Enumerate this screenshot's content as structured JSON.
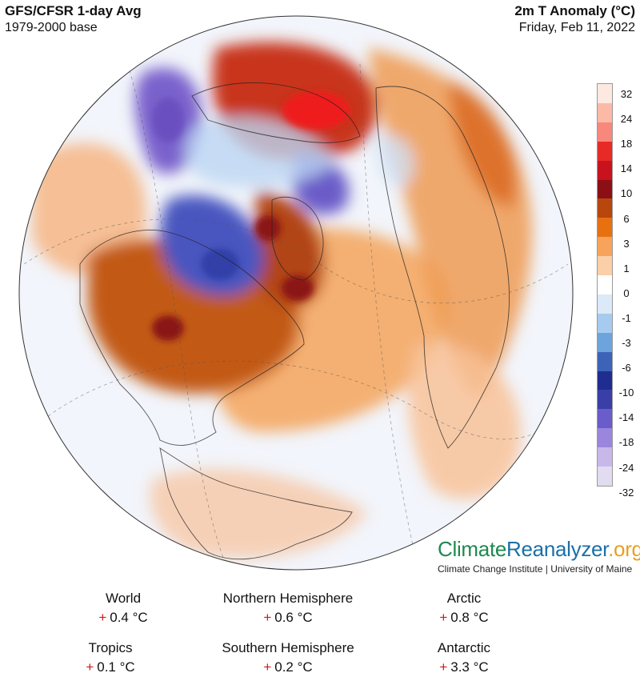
{
  "header": {
    "model": "GFS/CFSR 1-day Avg",
    "base": "1979-2000 base",
    "variable": "2m T Anomaly (°C)",
    "date": "Friday, Feb 11, 2022"
  },
  "legend": {
    "labels": [
      "32",
      "24",
      "18",
      "14",
      "10",
      "6",
      "3",
      "1",
      "0",
      "-1",
      "-3",
      "-6",
      "-10",
      "-14",
      "-18",
      "-24",
      "-32"
    ],
    "colors": [
      "#fde9df",
      "#fbb9a6",
      "#f8877c",
      "#e82a26",
      "#c8131e",
      "#8c0f16",
      "#b8470d",
      "#e8710f",
      "#f8a35c",
      "#fbcfa7",
      "#ffffff",
      "#dbe9f8",
      "#a6cbee",
      "#6ea4de",
      "#3c63b8",
      "#1e2d8f",
      "#3a3fa8",
      "#6a5ccb",
      "#9a86dc",
      "#c8b8ea",
      "#e2dcf1"
    ]
  },
  "brand": {
    "part1": "Climate",
    "part2": "Reanalyzer",
    "part3": ".org",
    "subtitle": "Climate Change Institute | University of Maine"
  },
  "stats": {
    "sign": "+",
    "world": {
      "label": "World",
      "value": "0.4 °C"
    },
    "nh": {
      "label": "Northern Hemisphere",
      "value": "0.6 °C"
    },
    "arctic": {
      "label": "Arctic",
      "value": "0.8 °C"
    },
    "tropics": {
      "label": "Tropics",
      "value": "0.1 °C"
    },
    "sh": {
      "label": "Southern Hemisphere",
      "value": "0.2 °C"
    },
    "antarctic": {
      "label": "Antarctic",
      "value": "3.3 °C"
    }
  }
}
